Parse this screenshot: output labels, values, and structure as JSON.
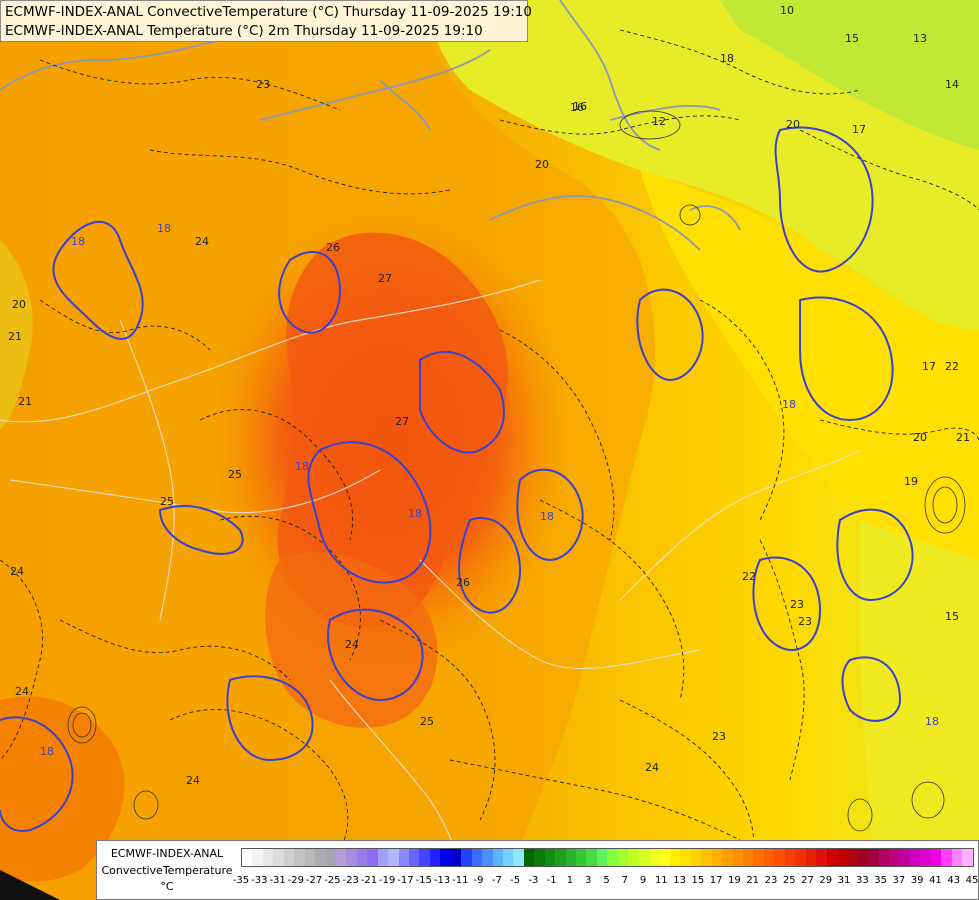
{
  "title": {
    "line1": "ECMWF-INDEX-ANAL ConvectiveTemperature (°C) Thursday 11-09-2025 19:10",
    "line2": "ECMWF-INDEX-ANAL Temperature (°C) 2m Thursday 11-09-2025 19:10"
  },
  "legend": {
    "model": "ECMWF-INDEX-ANAL",
    "param": "ConvectiveTemperature",
    "unit": "°C",
    "labels": [
      "-35",
      "-33",
      "-31",
      "-29",
      "-27",
      "-25",
      "-23",
      "-21",
      "-19",
      "-17",
      "-15",
      "-13",
      "-11",
      "-9",
      "-7",
      "-5",
      "-3",
      "-1",
      "1",
      "3",
      "5",
      "7",
      "9",
      "11",
      "13",
      "15",
      "17",
      "19",
      "21",
      "23",
      "25",
      "27",
      "29",
      "31",
      "33",
      "35",
      "37",
      "39",
      "41",
      "43",
      "45"
    ],
    "colors": [
      "#ffffff",
      "#f4f4f4",
      "#e8e8e8",
      "#dcdcdc",
      "#d0d0d0",
      "#c4c4c4",
      "#b8b8b8",
      "#acacac",
      "#a4a4b4",
      "#b49cd4",
      "#a88ce0",
      "#9a7cf0",
      "#8c6cff",
      "#a0a0ff",
      "#b4b4ff",
      "#8888ff",
      "#6666ff",
      "#4444ff",
      "#2222ff",
      "#0000ee",
      "#0000cc",
      "#2244ff",
      "#3a6cff",
      "#4a90ff",
      "#5ab4ff",
      "#70d0ff",
      "#90e8ff",
      "#006400",
      "#0a7a0a",
      "#148c14",
      "#1ea01e",
      "#28b428",
      "#34c834",
      "#46dc46",
      "#60f060",
      "#80ff40",
      "#a0ff30",
      "#c0ff20",
      "#d8ff20",
      "#eeff20",
      "#ffff20",
      "#fff000",
      "#ffe000",
      "#ffd000",
      "#ffc000",
      "#ffb000",
      "#ffa000",
      "#ff9000",
      "#ff8000",
      "#ff7000",
      "#ff6000",
      "#ff5000",
      "#f84000",
      "#f03000",
      "#e82000",
      "#e01010",
      "#d00000",
      "#c00000",
      "#b00010",
      "#a00020",
      "#a00040",
      "#b00060",
      "#c00080",
      "#c000a0",
      "#d000c0",
      "#e000d0",
      "#f000e0",
      "#ff40ff",
      "#ff80ff",
      "#ffb0ff"
    ]
  },
  "contour_labels": {
    "items": [
      "26",
      "27",
      "24",
      "18",
      "18",
      "25",
      "25",
      "27",
      "18",
      "18",
      "26",
      "24",
      "25",
      "24",
      "24",
      "23",
      "24",
      "23",
      "22",
      "23",
      "20",
      "21",
      "19",
      "18",
      "20",
      "16",
      "17",
      "15",
      "14",
      "12",
      "16",
      "13",
      "10",
      "18",
      "20",
      "17",
      "21",
      "22",
      "21",
      "18",
      "18",
      "15",
      "20",
      "23",
      "24",
      "18"
    ]
  }
}
